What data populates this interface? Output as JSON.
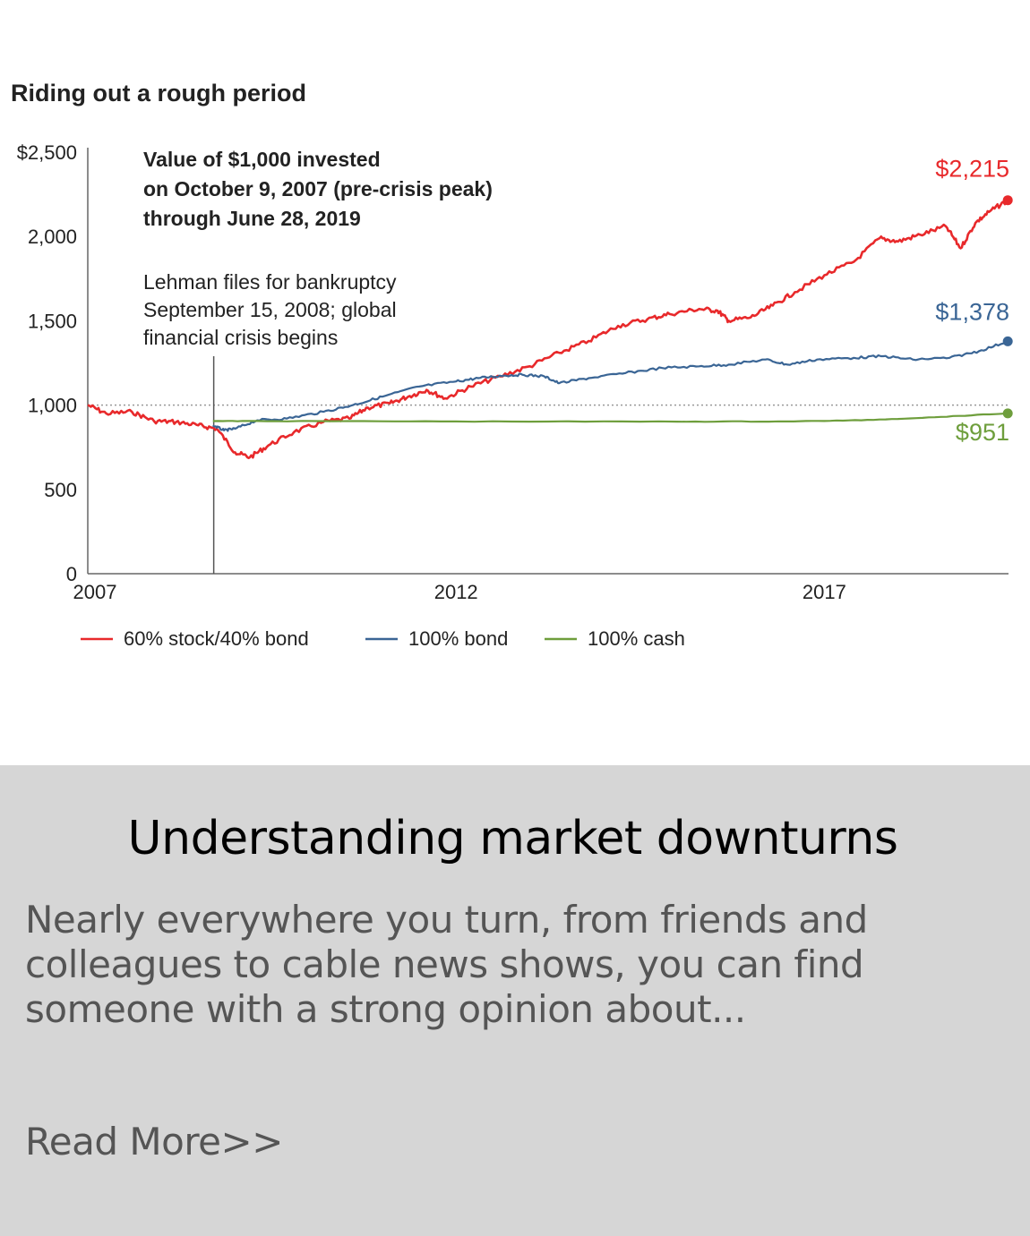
{
  "chart_data": {
    "type": "line",
    "title": "Riding out a rough period",
    "subtitle_lines": [
      "Value of $1,000 invested",
      "on October 9, 2007 (pre-crisis peak)",
      "through June 28, 2019"
    ],
    "annotation": {
      "x": 2008.71,
      "lines": [
        "Lehman files for bankruptcy",
        "September 15, 2008; global",
        "financial crisis begins"
      ]
    },
    "baseline": 1000,
    "xlim": [
      2007,
      2019.5
    ],
    "ylim": [
      0,
      2500
    ],
    "x_ticks": [
      2007,
      2012,
      2017
    ],
    "x_tick_labels": [
      "2007",
      "2012",
      "2017"
    ],
    "y_ticks": [
      0,
      500,
      1000,
      1500,
      2000,
      2500
    ],
    "y_tick_labels": [
      "0",
      "500",
      "1,000",
      "1,500",
      "2,000",
      "$2,500"
    ],
    "legend_position": "bottom",
    "series": [
      {
        "name": "60% stock/40% bond",
        "color": "#e8292b",
        "end_label": "$2,215",
        "points": [
          [
            2007.0,
            1000
          ],
          [
            2007.25,
            950
          ],
          [
            2007.6,
            960
          ],
          [
            2007.9,
            905
          ],
          [
            2008.2,
            900
          ],
          [
            2008.5,
            880
          ],
          [
            2008.75,
            860
          ],
          [
            2009.0,
            720
          ],
          [
            2009.2,
            690
          ],
          [
            2009.45,
            760
          ],
          [
            2009.8,
            840
          ],
          [
            2010.2,
            900
          ],
          [
            2010.55,
            920
          ],
          [
            2010.8,
            985
          ],
          [
            2011.1,
            1010
          ],
          [
            2011.35,
            1050
          ],
          [
            2011.6,
            1090
          ],
          [
            2011.85,
            1040
          ],
          [
            2012.2,
            1110
          ],
          [
            2012.6,
            1170
          ],
          [
            2013.0,
            1230
          ],
          [
            2013.4,
            1310
          ],
          [
            2013.8,
            1380
          ],
          [
            2014.2,
            1470
          ],
          [
            2014.6,
            1510
          ],
          [
            2014.9,
            1540
          ],
          [
            2015.3,
            1570
          ],
          [
            2015.55,
            1560
          ],
          [
            2015.7,
            1500
          ],
          [
            2016.0,
            1520
          ],
          [
            2016.3,
            1590
          ],
          [
            2016.6,
            1670
          ],
          [
            2017.0,
            1770
          ],
          [
            2017.4,
            1850
          ],
          [
            2017.75,
            1990
          ],
          [
            2018.0,
            1970
          ],
          [
            2018.3,
            2010
          ],
          [
            2018.65,
            2060
          ],
          [
            2018.85,
            1930
          ],
          [
            2019.05,
            2080
          ],
          [
            2019.25,
            2150
          ],
          [
            2019.49,
            2215
          ]
        ]
      },
      {
        "name": "100% bond",
        "color": "#3a6595",
        "end_label": "$1,378",
        "points": [
          [
            2008.7,
            880
          ],
          [
            2008.85,
            850
          ],
          [
            2009.0,
            860
          ],
          [
            2009.3,
            910
          ],
          [
            2009.7,
            920
          ],
          [
            2010.2,
            960
          ],
          [
            2010.6,
            1000
          ],
          [
            2011.0,
            1050
          ],
          [
            2011.5,
            1110
          ],
          [
            2012.0,
            1140
          ],
          [
            2012.3,
            1160
          ],
          [
            2012.65,
            1175
          ],
          [
            2012.9,
            1180
          ],
          [
            2013.2,
            1170
          ],
          [
            2013.4,
            1130
          ],
          [
            2013.8,
            1160
          ],
          [
            2014.3,
            1190
          ],
          [
            2014.8,
            1220
          ],
          [
            2015.3,
            1230
          ],
          [
            2015.7,
            1240
          ],
          [
            2016.2,
            1270
          ],
          [
            2016.5,
            1240
          ],
          [
            2016.9,
            1270
          ],
          [
            2017.4,
            1280
          ],
          [
            2017.8,
            1290
          ],
          [
            2018.2,
            1270
          ],
          [
            2018.7,
            1280
          ],
          [
            2019.1,
            1320
          ],
          [
            2019.49,
            1378
          ]
        ]
      },
      {
        "name": "100% cash",
        "color": "#6e9e3c",
        "end_label": "$951",
        "points": [
          [
            2008.7,
            905
          ],
          [
            2009.5,
            905
          ],
          [
            2012.0,
            903
          ],
          [
            2015.0,
            902
          ],
          [
            2016.5,
            903
          ],
          [
            2017.5,
            910
          ],
          [
            2018.5,
            928
          ],
          [
            2019.49,
            951
          ]
        ]
      }
    ]
  },
  "article": {
    "title": "Understanding market downturns",
    "excerpt_lines": [
      "Nearly everywhere you turn, from friends and",
      "colleagues to cable news shows, you can find",
      "someone with a strong opinion about..."
    ],
    "read_more": "Read More>>"
  }
}
